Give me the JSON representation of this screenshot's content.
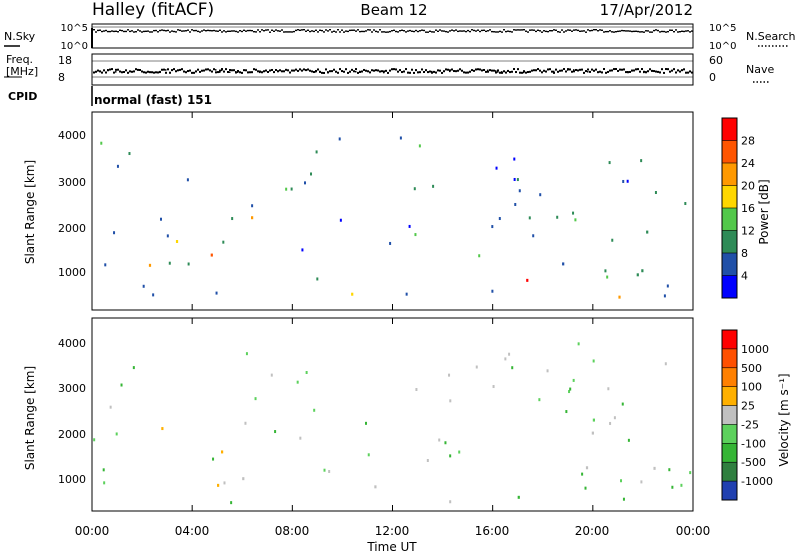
{
  "header": {
    "radar": "Halley (fitACF)",
    "beam": "Beam 12",
    "date": "17/Apr/2012"
  },
  "noise_panel": {
    "left_label": "N.Sky",
    "right_label": "N.Search",
    "left_ticks": [
      "10^5",
      "10^0"
    ],
    "right_ticks": [
      "10^5",
      "10^0"
    ]
  },
  "freq_panel": {
    "left_label_1": "Freq.",
    "left_label_2": "[MHz]",
    "left_ticks": [
      "18",
      "8"
    ],
    "right_label": "Nave",
    "right_ticks": [
      "60",
      "0"
    ],
    "cpid_label": "CPID"
  },
  "cpid": {
    "text": "normal (fast) 151"
  },
  "power_panel": {
    "ylabel": "Slant Range [km]",
    "yticks": [
      "4000",
      "3000",
      "2000",
      "1000"
    ],
    "colorbar_label": "Power [dB]",
    "colorbar_ticks": [
      "28",
      "24",
      "20",
      "16",
      "12",
      "8",
      "4"
    ]
  },
  "velocity_panel": {
    "ylabel": "Slant Range [km]",
    "yticks": [
      "4000",
      "3000",
      "2000",
      "1000"
    ],
    "colorbar_label": "Velocity [m s⁻¹]",
    "colorbar_ticks": [
      "1000",
      "500",
      "100",
      "25",
      "-25",
      "-100",
      "-500",
      "-1000"
    ]
  },
  "xaxis": {
    "label": "Time UT",
    "ticks": [
      "00:00",
      "04:00",
      "08:00",
      "12:00",
      "16:00",
      "20:00",
      "00:00"
    ]
  },
  "colors": {
    "power": [
      "#0000ff",
      "#2050a8",
      "#2e8b57",
      "#52c84a",
      "#ffd700",
      "#ff9900",
      "#ff5500",
      "#ff0000"
    ],
    "velocity": [
      "#2040b0",
      "#2f7f3f",
      "#35b535",
      "#5cd15c",
      "#c0c0c0",
      "#ffb000",
      "#ff8000",
      "#ff5000",
      "#ff0000"
    ]
  },
  "chart_data": [
    {
      "type": "line",
      "title": "Halley (fitACF) Beam 12 17/Apr/2012",
      "xlabel": "Time UT",
      "x_ticks": [
        "00:00",
        "04:00",
        "08:00",
        "12:00",
        "16:00",
        "20:00",
        "00:00"
      ],
      "series": [
        {
          "name": "N.Sky",
          "values": [
            100000,
            100000,
            100000,
            100000,
            100000,
            100000,
            100000
          ]
        }
      ]
    },
    {
      "type": "line",
      "series": [
        {
          "name": "Freq.",
          "values": [
            11,
            11,
            11,
            11,
            11,
            11,
            11
          ]
        }
      ],
      "ylim": [
        8,
        18
      ]
    },
    {
      "type": "heatmap",
      "ylabel": "Slant Range [km]",
      "xlabel": "Time UT",
      "ylim": [
        200,
        4500
      ],
      "xlim": [
        "00:00",
        "24:00"
      ],
      "colorbar": "Power [dB]",
      "colorbar_range": [
        0,
        30
      ],
      "regions": [
        {
          "time": [
            2.0,
            7.3
          ],
          "range": [
            800,
            2300
          ],
          "value": 20
        },
        {
          "time": [
            5.5,
            6.3
          ],
          "range": [
            900,
            1900
          ],
          "value": 26
        },
        {
          "time": [
            0.0,
            0.6
          ],
          "range": [
            300,
            700
          ],
          "value": 14
        },
        {
          "time": [
            8.0,
            10.8
          ],
          "range": [
            250,
            400
          ],
          "value": 26
        },
        {
          "time": [
            9.0,
            11.5
          ],
          "range": [
            500,
            1100
          ],
          "value": 16
        },
        {
          "time": [
            17.0,
            18.4
          ],
          "range": [
            600,
            1300
          ],
          "value": 27
        },
        {
          "time": [
            18.5,
            21.5
          ],
          "range": [
            300,
            900
          ],
          "value": 24
        },
        {
          "time": [
            18.0,
            22.5
          ],
          "range": [
            900,
            2300
          ],
          "value": 10
        }
      ]
    },
    {
      "type": "heatmap",
      "ylabel": "Slant Range [km]",
      "xlabel": "Time UT",
      "ylim": [
        200,
        4500
      ],
      "xlim": [
        "00:00",
        "24:00"
      ],
      "colorbar": "Velocity [m s⁻¹]",
      "colorbar_range": [
        -1000,
        1000
      ],
      "regions": [
        {
          "time": [
            2.0,
            7.3
          ],
          "range": [
            800,
            2200
          ],
          "value": -100
        },
        {
          "time": [
            0.0,
            0.6
          ],
          "range": [
            300,
            700
          ],
          "value": 100
        },
        {
          "time": [
            8.0,
            10.8
          ],
          "range": [
            250,
            400
          ],
          "value": -100
        },
        {
          "time": [
            9.0,
            11.5
          ],
          "range": [
            500,
            1100
          ],
          "value": -100
        },
        {
          "time": [
            14.5,
            16.0
          ],
          "range": [
            600,
            1100
          ],
          "value": 0
        },
        {
          "time": [
            16.0,
            18.0
          ],
          "range": [
            500,
            1300
          ],
          "value": 100
        },
        {
          "time": [
            18.0,
            22.5
          ],
          "range": [
            900,
            2300
          ],
          "value": 0
        }
      ]
    }
  ]
}
